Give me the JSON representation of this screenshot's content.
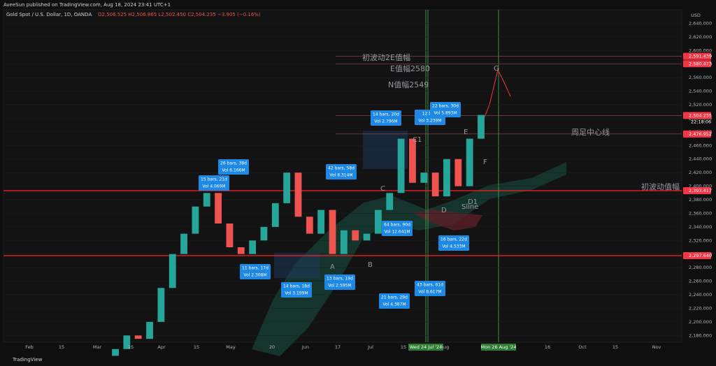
{
  "header": {
    "publisher": "AveeSun published on TradingView.com, Aug 18, 2024 23:41 UTC+1",
    "symbol": "Gold Spot / U.S. Dollar, 1D, OANDA",
    "ohlc": "O2,506.525 H2,506.865 L2,502.450 C2,504.235 −3.905 (−0.16%)"
  },
  "currency": "USD",
  "footer": "TradingView",
  "chart_data": {
    "type": "candlestick",
    "ylim": [
      2170,
      2660
    ],
    "yticks": [
      {
        "value": 2180,
        "label": "2,180.000"
      },
      {
        "value": 2200,
        "label": "2,200.000"
      },
      {
        "value": 2220,
        "label": "2,220.000"
      },
      {
        "value": 2240,
        "label": "2,240.000"
      },
      {
        "value": 2260,
        "label": "2,260.000"
      },
      {
        "value": 2280,
        "label": "2,280.000"
      },
      {
        "value": 2300,
        "label": "2,300.000"
      },
      {
        "value": 2320,
        "label": "2,320.000"
      },
      {
        "value": 2340,
        "label": "2,340.000"
      },
      {
        "value": 2360,
        "label": "2,360.000"
      },
      {
        "value": 2380,
        "label": "2,380.000"
      },
      {
        "value": 2400,
        "label": "2,400.000"
      },
      {
        "value": 2420,
        "label": "2,420.000"
      },
      {
        "value": 2440,
        "label": "2,440.000"
      },
      {
        "value": 2460,
        "label": "2,460.000"
      },
      {
        "value": 2480,
        "label": "2,480.000"
      },
      {
        "value": 2500,
        "label": "2,500.000"
      },
      {
        "value": 2520,
        "label": "2,520.000"
      },
      {
        "value": 2540,
        "label": "2,540.000"
      },
      {
        "value": 2560,
        "label": "2,560.000"
      },
      {
        "value": 2580,
        "label": "2,580.000"
      },
      {
        "value": 2600,
        "label": "2,600.000"
      },
      {
        "value": 2620,
        "label": "2,620.000"
      },
      {
        "value": 2640,
        "label": "2,640.000"
      }
    ],
    "open": [
      2150,
      2160,
      2180,
      2175,
      2200,
      2250,
      2300,
      2330,
      2370,
      2390,
      2345,
      2310,
      2300,
      2320,
      2340,
      2375,
      2420,
      2355,
      2330,
      2365,
      2300,
      2335,
      2320,
      2330,
      2365,
      2390,
      2470,
      2405,
      2420,
      2385,
      2440,
      2400,
      2470
    ],
    "close": [
      2160,
      2180,
      2175,
      2200,
      2250,
      2300,
      2330,
      2370,
      2390,
      2345,
      2310,
      2300,
      2320,
      2340,
      2375,
      2420,
      2355,
      2330,
      2365,
      2300,
      2335,
      2320,
      2330,
      2365,
      2390,
      2470,
      2405,
      2420,
      2385,
      2440,
      2400,
      2470,
      2505
    ],
    "up_color": "#26a69a",
    "down_color": "#ef5350"
  },
  "price_labels": [
    {
      "value": 2591.439,
      "label": "2,591.439",
      "color": "#f23645"
    },
    {
      "value": 2580.473,
      "label": "2,580.473",
      "color": "#f23645"
    },
    {
      "value": 2504.235,
      "label": "2,504.235",
      "color": "#f23645"
    },
    {
      "value": 2476.952,
      "label": "2,476.952",
      "color": "#f23645"
    },
    {
      "value": 2393.417,
      "label": "2,393.417",
      "color": "#f23645"
    },
    {
      "value": 2297.64,
      "label": "2,297.640",
      "color": "#f23645"
    }
  ],
  "countdown": "22:18:06",
  "time_axis": [
    "Feb",
    "15",
    "Mar",
    "15",
    "Apr",
    "15",
    "May",
    "20",
    "Jun",
    "17",
    "Jul",
    "15",
    "Wed 24 Jul '24",
    "Aug",
    "Mon 26 Aug '24",
    "16",
    "Oct",
    "15",
    "Nov"
  ],
  "annotations": [
    "初波动2E值幅",
    "E值幅2580",
    "N值幅2549",
    "周足中心线",
    "初波动值幅"
  ],
  "letters": [
    "C1",
    "C",
    "E",
    "F",
    "D",
    "D1",
    "Sline",
    "A",
    "B",
    "G"
  ],
  "stats": [
    [
      "26 bars, 38d",
      "Vol 6.166M"
    ],
    [
      "15 bars, 21d",
      "Vol 4.069M"
    ],
    [
      "42 bars, 58d",
      "Vol 8.314M"
    ],
    [
      "14 bars, 20d",
      "Vol 2.796M"
    ],
    [
      "12 bars",
      "Vol 3.239M"
    ],
    [
      "22 bars, 30d",
      "Vol 5.893M"
    ],
    [
      "64 bars, 90d",
      "Vol 12.641M"
    ],
    [
      "16 bars, 22d",
      "Vol 4.533M"
    ],
    [
      "11 bars, 17d",
      "Vol 2.308M"
    ],
    [
      "14 bars, 18d",
      "Vol 3.199M"
    ],
    [
      "13 bars, 19d",
      "Vol 2.595M"
    ],
    [
      "43 bars, 61d",
      "Vol 8.617M"
    ],
    [
      "21 bars, 29d",
      "Vol 4.387M"
    ]
  ]
}
